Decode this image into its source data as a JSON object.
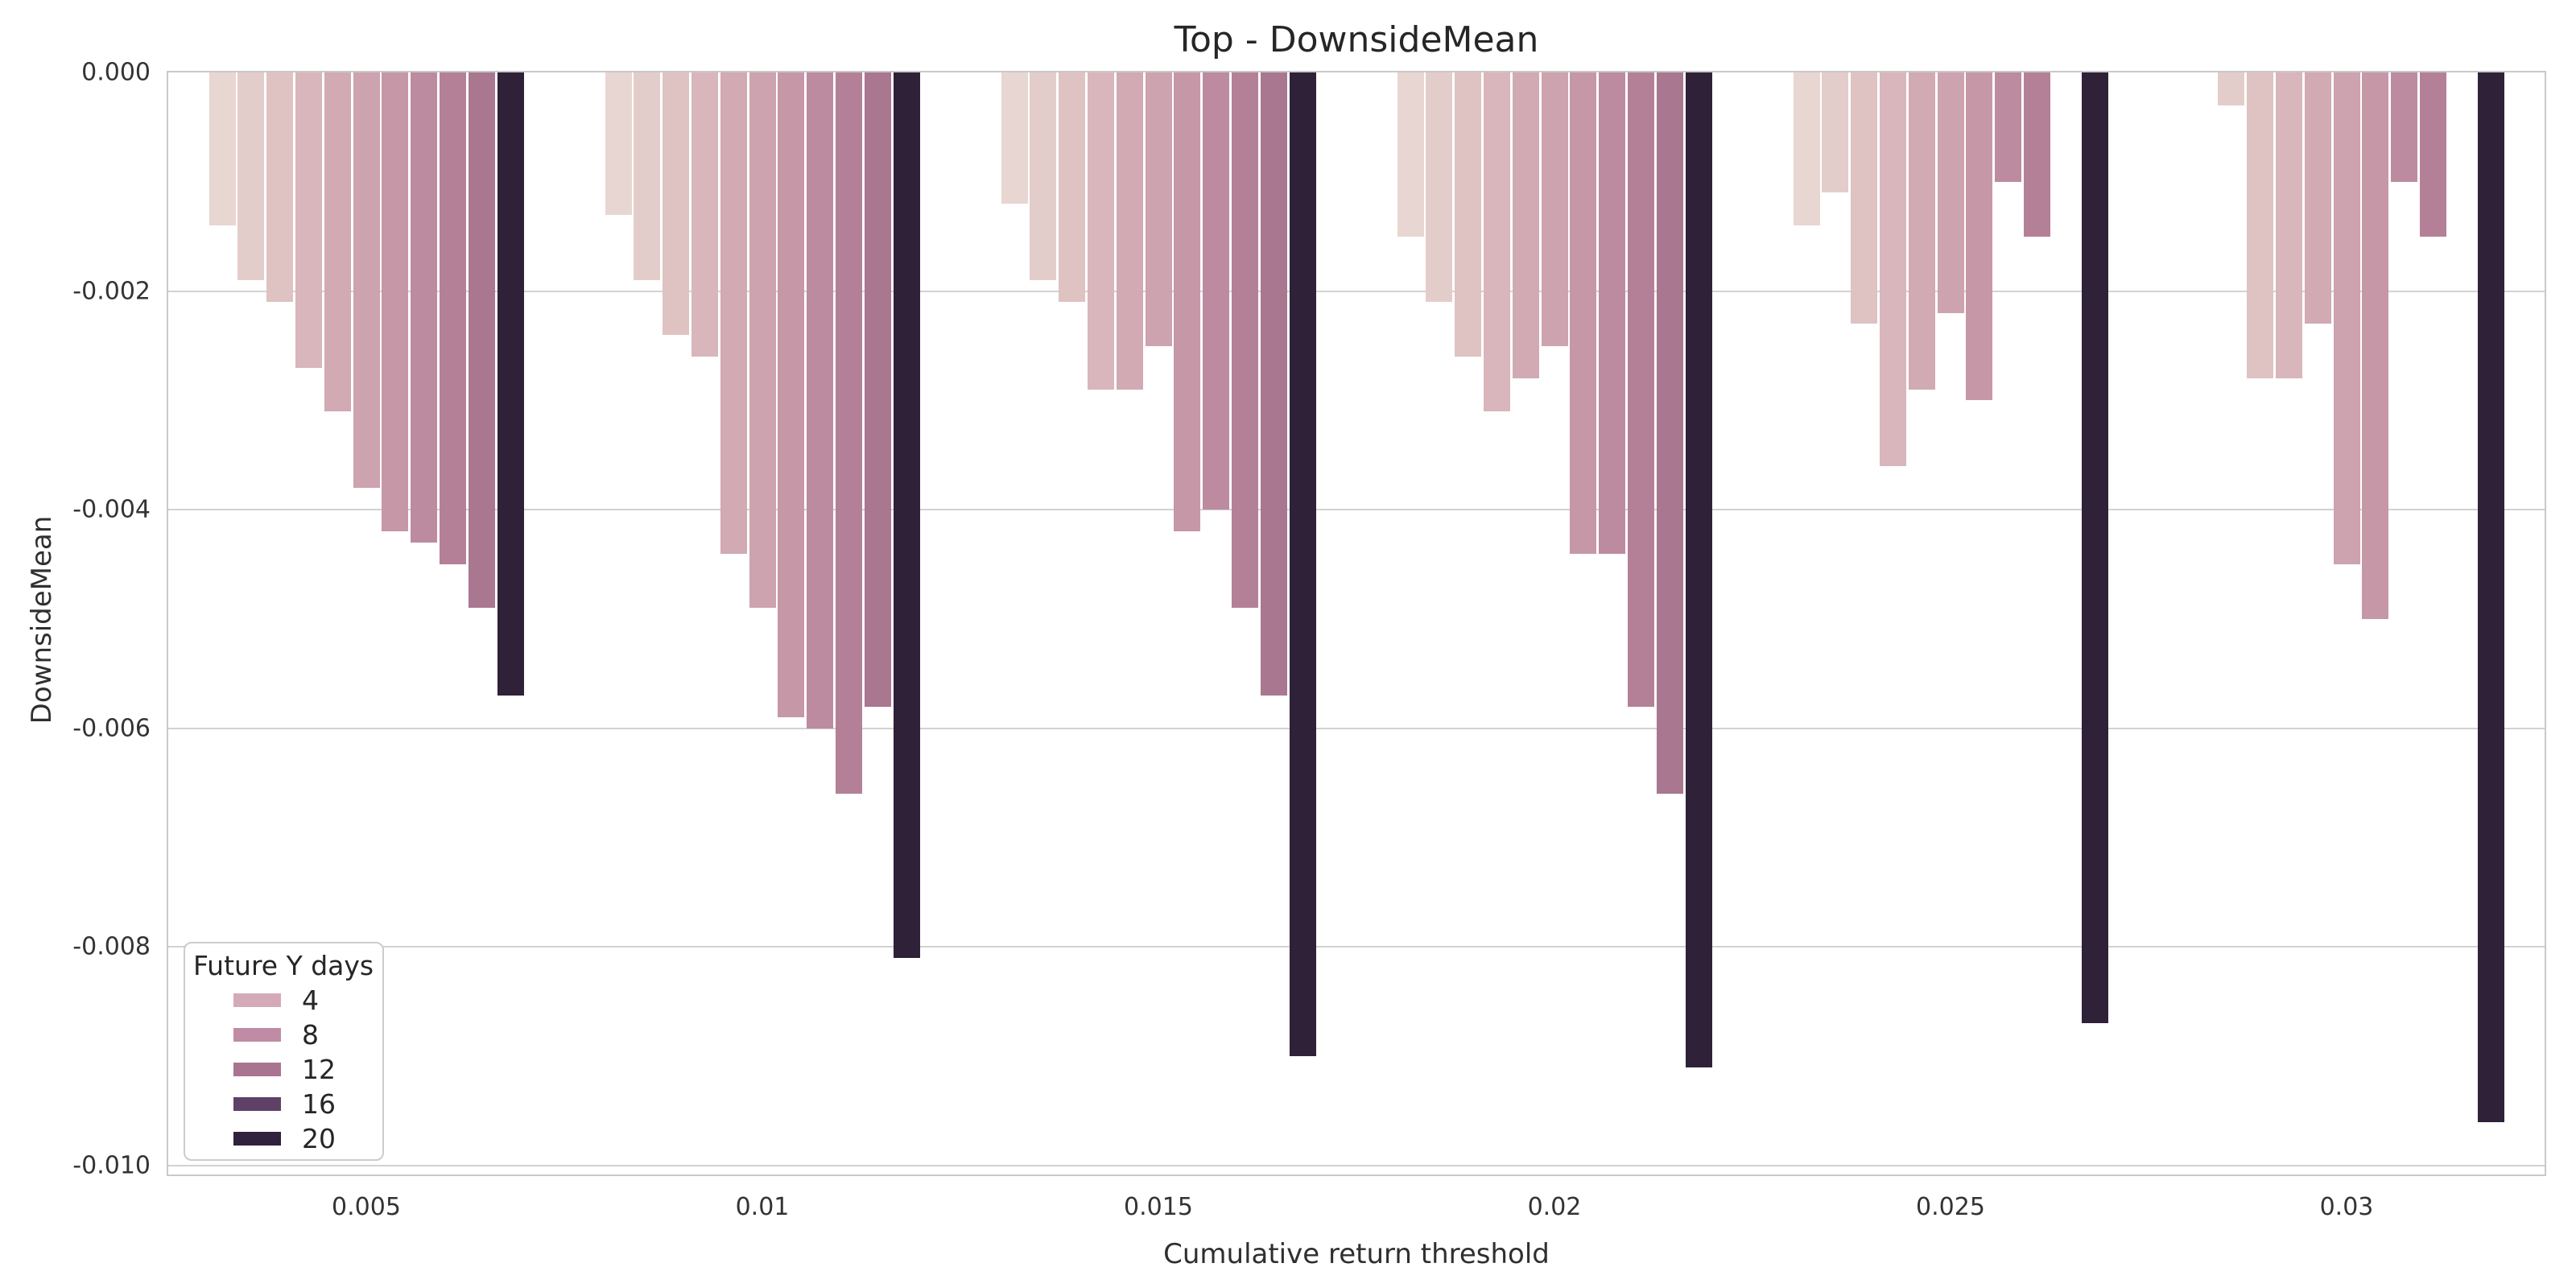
{
  "chart_data": {
    "type": "bar",
    "title": "Top - DownsideMean",
    "xlabel": "Cumulative return threshold",
    "ylabel": "DownsideMean",
    "categories": [
      "0.005",
      "0.01",
      "0.015",
      "0.02",
      "0.025",
      "0.03"
    ],
    "yticks": [
      0,
      -0.002,
      -0.004,
      -0.006,
      -0.008,
      -0.01
    ],
    "ytick_labels": [
      "0.000",
      "-0.002",
      "-0.004",
      "-0.006",
      "-0.008",
      "-0.010"
    ],
    "ylim": [
      -0.0101,
      0
    ],
    "grid": true,
    "background": "#ffffff",
    "gridline_color": "#d2d2d2",
    "spine_color": "#c9c9c9",
    "legend": {
      "title": "Future Y days",
      "position": "lower left",
      "entries": [
        {
          "label": "4",
          "color": "#d4aab8"
        },
        {
          "label": "8",
          "color": "#c08ba4"
        },
        {
          "label": "12",
          "color": "#a97490"
        },
        {
          "label": "16",
          "color": "#5d4166"
        },
        {
          "label": "20",
          "color": "#30213c"
        }
      ]
    },
    "series": [
      {
        "name": "s1",
        "color": "#e7d6d2",
        "values": [
          -0.0014,
          -0.0013,
          -0.0012,
          -0.0015,
          -0.0014,
          null
        ]
      },
      {
        "name": "s2",
        "color": "#e3cdca",
        "values": [
          -0.0019,
          -0.0019,
          -0.0019,
          -0.0021,
          -0.0011,
          -0.0003
        ]
      },
      {
        "name": "s3",
        "color": "#dfc2c2",
        "values": [
          -0.0021,
          -0.0024,
          -0.0021,
          -0.0026,
          -0.0023,
          -0.0028
        ]
      },
      {
        "name": "s4",
        "color": "#d8b6bb",
        "values": [
          -0.0027,
          -0.0026,
          -0.0029,
          -0.0031,
          -0.0036,
          -0.0028
        ]
      },
      {
        "name": "s5",
        "color": "#d1aab3",
        "values": [
          -0.0031,
          -0.0044,
          -0.0029,
          -0.0028,
          -0.0029,
          -0.0023
        ]
      },
      {
        "name": "s6",
        "color": "#cca3ae",
        "values": [
          -0.0038,
          -0.0049,
          -0.0025,
          -0.0025,
          -0.0022,
          -0.0045
        ]
      },
      {
        "name": "s7",
        "color": "#c697a7",
        "values": [
          -0.0042,
          -0.0059,
          -0.0042,
          -0.0044,
          -0.003,
          -0.005
        ]
      },
      {
        "name": "s8",
        "color": "#bd8ba0",
        "values": [
          -0.0043,
          -0.006,
          -0.004,
          -0.0044,
          -0.001,
          -0.001
        ]
      },
      {
        "name": "s9",
        "color": "#b48097",
        "values": [
          -0.0045,
          -0.0066,
          -0.0049,
          -0.0058,
          -0.0015,
          -0.0015
        ]
      },
      {
        "name": "s10",
        "color": "#a9778f",
        "values": [
          -0.0049,
          -0.0058,
          -0.0057,
          -0.0066,
          null,
          null
        ]
      },
      {
        "name": "s11",
        "color": "#2e2138",
        "values": [
          -0.0057,
          -0.0081,
          -0.009,
          -0.0091,
          -0.0087,
          -0.0096
        ]
      }
    ]
  }
}
